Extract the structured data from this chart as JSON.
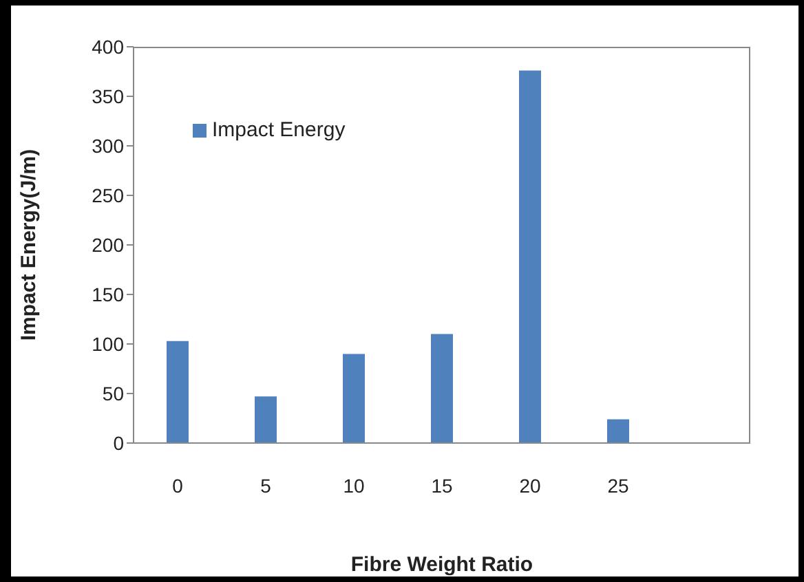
{
  "chart_data": {
    "type": "bar",
    "xlabel": "Fibre Weight Ratio",
    "ylabel": "Impact Energy(J/m)",
    "categories": [
      "0",
      "5",
      "10",
      "15",
      "20",
      "25",
      null
    ],
    "series": [
      {
        "name": "Impact Energy",
        "color": "#4f81bd",
        "values": [
          103,
          47,
          90,
          110,
          376,
          24,
          null
        ]
      }
    ],
    "ylim": [
      0,
      400
    ],
    "yticks": [
      0,
      50,
      100,
      150,
      200,
      250,
      300,
      350,
      400
    ],
    "grid": false,
    "legend": "top left"
  }
}
